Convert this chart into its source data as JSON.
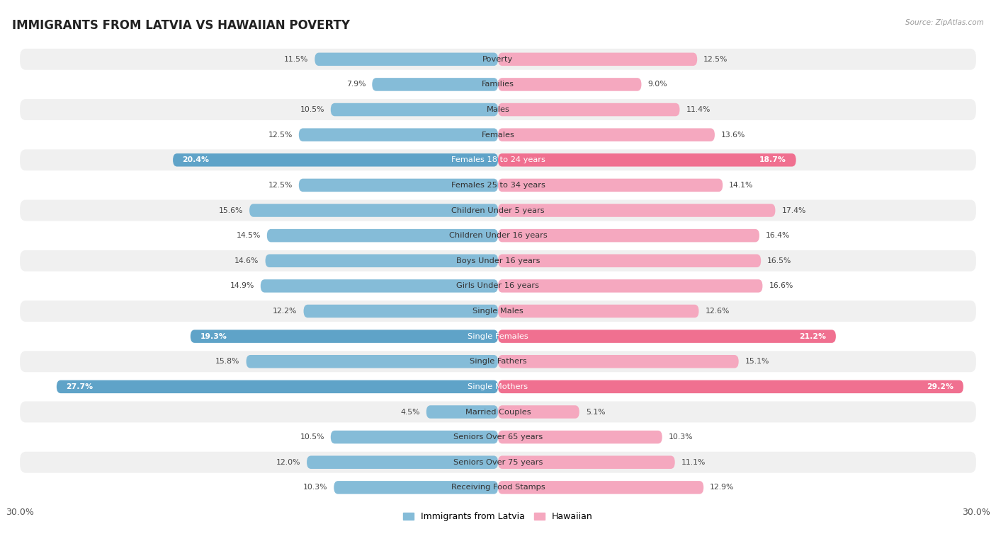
{
  "title": "IMMIGRANTS FROM LATVIA VS HAWAIIAN POVERTY",
  "source": "Source: ZipAtlas.com",
  "categories": [
    "Poverty",
    "Families",
    "Males",
    "Females",
    "Females 18 to 24 years",
    "Females 25 to 34 years",
    "Children Under 5 years",
    "Children Under 16 years",
    "Boys Under 16 years",
    "Girls Under 16 years",
    "Single Males",
    "Single Females",
    "Single Fathers",
    "Single Mothers",
    "Married Couples",
    "Seniors Over 65 years",
    "Seniors Over 75 years",
    "Receiving Food Stamps"
  ],
  "latvia_values": [
    11.5,
    7.9,
    10.5,
    12.5,
    20.4,
    12.5,
    15.6,
    14.5,
    14.6,
    14.9,
    12.2,
    19.3,
    15.8,
    27.7,
    4.5,
    10.5,
    12.0,
    10.3
  ],
  "hawaii_values": [
    12.5,
    9.0,
    11.4,
    13.6,
    18.7,
    14.1,
    17.4,
    16.4,
    16.5,
    16.6,
    12.6,
    21.2,
    15.1,
    29.2,
    5.1,
    10.3,
    11.1,
    12.9
  ],
  "latvia_color": "#85bcd8",
  "hawaii_color": "#f5a8bf",
  "latvia_highlight_color": "#5fa3c8",
  "hawaii_highlight_color": "#f07090",
  "highlight_rows": [
    4,
    11,
    13
  ],
  "max_val": 30.0,
  "bg_color": "#ffffff",
  "row_even_color": "#f0f0f0",
  "row_odd_color": "#ffffff",
  "legend_latvia": "Immigrants from Latvia",
  "legend_hawaii": "Hawaiian",
  "title_fontsize": 12,
  "label_fontsize": 8.2,
  "value_fontsize": 7.8
}
